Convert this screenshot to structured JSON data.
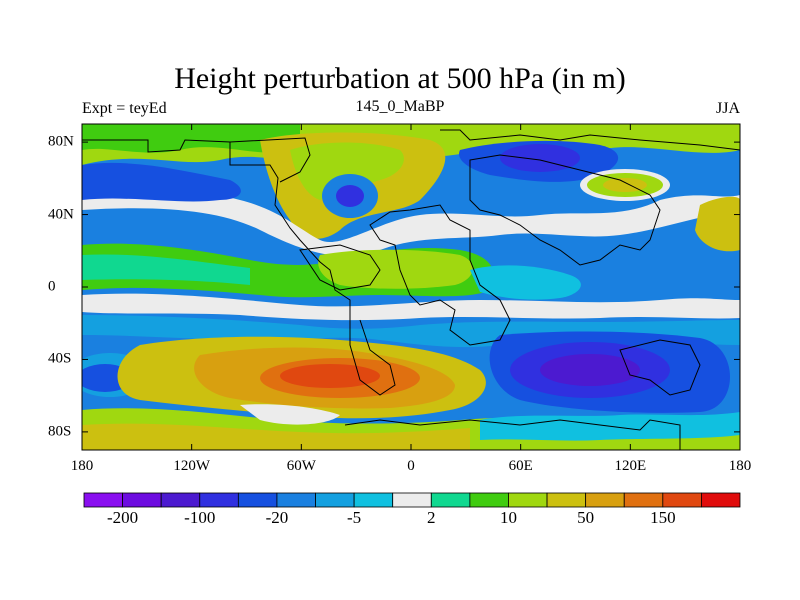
{
  "title": "Height perturbation at 500 hPa (in m)",
  "left_string": "Expt = teyEd",
  "center_string": "145_0_MaBP",
  "right_string": "JJA",
  "x_ticks": [
    {
      "lon": -180,
      "label": "180"
    },
    {
      "lon": -120,
      "label": "120W"
    },
    {
      "lon": -60,
      "label": "60W"
    },
    {
      "lon": 0,
      "label": "0"
    },
    {
      "lon": 60,
      "label": "60E"
    },
    {
      "lon": 120,
      "label": "120E"
    },
    {
      "lon": 180,
      "label": "180"
    }
  ],
  "y_ticks": [
    {
      "lat": 80,
      "label": "80N"
    },
    {
      "lat": 40,
      "label": "40N"
    },
    {
      "lat": 0,
      "label": "0"
    },
    {
      "lat": -40,
      "label": "40S"
    },
    {
      "lat": -80,
      "label": "80S"
    }
  ],
  "colorbar": {
    "colors": [
      "#8a0ff0",
      "#6d0ce0",
      "#4c1ad0",
      "#3030e0",
      "#1650e0",
      "#1a80e0",
      "#14a0e0",
      "#10c0e0",
      "#ececec",
      "#10d890",
      "#40cc10",
      "#a0d810",
      "#ccc010",
      "#d8a010",
      "#e07010",
      "#e04810",
      "#e00c0c"
    ],
    "labels": [
      {
        "index": 1,
        "text": "-200"
      },
      {
        "index": 3,
        "text": "-100"
      },
      {
        "index": 5,
        "text": "-20"
      },
      {
        "index": 7,
        "text": "-5"
      },
      {
        "index": 9,
        "text": "2"
      },
      {
        "index": 11,
        "text": "10"
      },
      {
        "index": 13,
        "text": "50"
      },
      {
        "index": 15,
        "text": "150"
      }
    ]
  }
}
